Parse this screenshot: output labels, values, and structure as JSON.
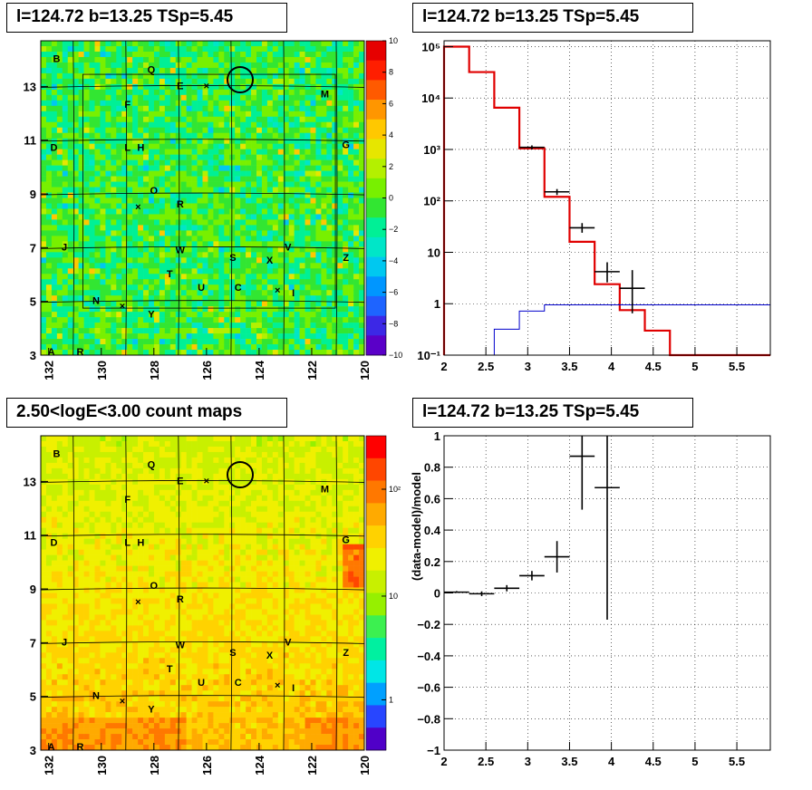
{
  "panels": {
    "tl_title": "l=124.72 b=13.25 TSp=5.45",
    "tr_title": "l=124.72 b=13.25 TSp=5.45",
    "bl_title": "2.50<logE<3.00 count maps",
    "br_title": "l=124.72 b=13.25 TSp=5.45"
  },
  "colors": {
    "accent_red": "#e00000",
    "model_blue": "#0000cc",
    "axis": "#000000"
  },
  "skymap": {
    "x_ticks": [
      "132",
      "130",
      "128",
      "126",
      "124",
      "122",
      "120"
    ],
    "y_ticks": [
      "13",
      "11",
      "9",
      "7",
      "5",
      "3"
    ],
    "residual_colorbar_ticks": [
      "10",
      "8",
      "6",
      "4",
      "2",
      "0",
      "−2",
      "−4",
      "−6",
      "−8",
      "−10"
    ],
    "count_colorbar_ticks": [
      "10²",
      "10",
      "1"
    ],
    "sources": [
      {
        "label": "B",
        "l": 131.7,
        "b": 13.9
      },
      {
        "label": "Q",
        "l": 128.1,
        "b": 13.5
      },
      {
        "label": "E",
        "l": 127.0,
        "b": 12.9
      },
      {
        "label": "M",
        "l": 121.5,
        "b": 12.6
      },
      {
        "label": "F",
        "l": 129.0,
        "b": 12.2
      },
      {
        "label": "G",
        "l": 120.7,
        "b": 10.7
      },
      {
        "label": "D",
        "l": 131.8,
        "b": 10.6
      },
      {
        "label": "L",
        "l": 129.0,
        "b": 10.6
      },
      {
        "label": "H",
        "l": 128.5,
        "b": 10.6
      },
      {
        "label": "O",
        "l": 128.0,
        "b": 9.0
      },
      {
        "label": "R",
        "l": 127.0,
        "b": 8.5
      },
      {
        "label": "J",
        "l": 131.4,
        "b": 6.9
      },
      {
        "label": "W",
        "l": 127.0,
        "b": 6.8
      },
      {
        "label": "V",
        "l": 122.9,
        "b": 6.9
      },
      {
        "label": "S",
        "l": 125.0,
        "b": 6.5
      },
      {
        "label": "X",
        "l": 123.6,
        "b": 6.4
      },
      {
        "label": "Z",
        "l": 120.7,
        "b": 6.5
      },
      {
        "label": "T",
        "l": 127.4,
        "b": 5.9
      },
      {
        "label": "U",
        "l": 126.2,
        "b": 5.4
      },
      {
        "label": "C",
        "l": 124.8,
        "b": 5.4
      },
      {
        "label": "I",
        "l": 122.7,
        "b": 5.2
      },
      {
        "label": "N",
        "l": 130.2,
        "b": 4.9
      },
      {
        "label": "Y",
        "l": 128.1,
        "b": 4.4
      },
      {
        "label": "A",
        "l": 131.9,
        "b": 3.0
      },
      {
        "label": "R",
        "l": 130.8,
        "b": 3.0
      }
    ]
  },
  "chart_data": [
    {
      "type": "line",
      "title": "l=124.72 b=13.25 TSp=5.45",
      "xlim": [
        2,
        5.9
      ],
      "ylim": [
        0.1,
        130000
      ],
      "y_scale": "log",
      "x_ticks": [
        "2",
        "2.5",
        "3",
        "3.5",
        "4",
        "4.5",
        "5",
        "5.5"
      ],
      "y_ticks": [
        "10⁻¹",
        "1",
        "10",
        "10²",
        "10³",
        "10⁴",
        "10⁵"
      ],
      "grid": true,
      "series": [
        {
          "type": "step",
          "color": "#e00000",
          "edges": [
            2.0,
            2.3,
            2.6,
            2.9,
            3.2,
            3.5,
            3.8,
            4.1,
            4.4,
            4.7,
            5.9
          ],
          "values": [
            100000,
            32000,
            6500,
            1050,
            120,
            16,
            2.4,
            0.75,
            0.3,
            0.1
          ]
        },
        {
          "type": "step",
          "color": "#0000cc",
          "edges": [
            2.3,
            2.6,
            2.9,
            3.2,
            5.9
          ],
          "values": [
            0.1,
            0.32,
            0.72,
            0.95
          ]
        },
        {
          "type": "points",
          "color": "#000000",
          "x": [
            3.05,
            3.35,
            3.65,
            3.95,
            4.25
          ],
          "xerr": [
            0.15,
            0.15,
            0.15,
            0.15,
            0.15
          ],
          "y": [
            1100,
            150,
            30,
            4.2,
            2.0
          ],
          "ylo": [
            1000,
            130,
            24,
            2.6,
            0.65
          ],
          "yhi": [
            1200,
            170,
            37,
            6.4,
            4.5
          ]
        }
      ]
    },
    {
      "type": "scatter",
      "title": "l=124.72 b=13.25 TSp=5.45",
      "ylabel": "(data-model)/model",
      "xlim": [
        2,
        5.9
      ],
      "ylim": [
        -1,
        1
      ],
      "x_ticks": [
        "2",
        "2.5",
        "3",
        "3.5",
        "4",
        "4.5",
        "5",
        "5.5"
      ],
      "y_ticks": [
        "1",
        "0.8",
        "0.6",
        "0.4",
        "0.2",
        "0",
        "−0.2",
        "−0.4",
        "−0.6",
        "−0.8",
        "−1"
      ],
      "grid": true,
      "points": {
        "x": [
          2.15,
          2.45,
          2.75,
          3.05,
          3.35,
          3.65,
          3.95
        ],
        "xerr": [
          0.15,
          0.15,
          0.15,
          0.15,
          0.15,
          0.15,
          0.15
        ],
        "y": [
          0.005,
          -0.005,
          0.03,
          0.11,
          0.23,
          0.87,
          0.67
        ],
        "ylo": [
          0.0,
          -0.02,
          0.01,
          0.08,
          0.13,
          0.53,
          -0.17
        ],
        "yhi": [
          0.012,
          0.01,
          0.05,
          0.14,
          0.33,
          1.0,
          1.0
        ]
      }
    }
  ]
}
